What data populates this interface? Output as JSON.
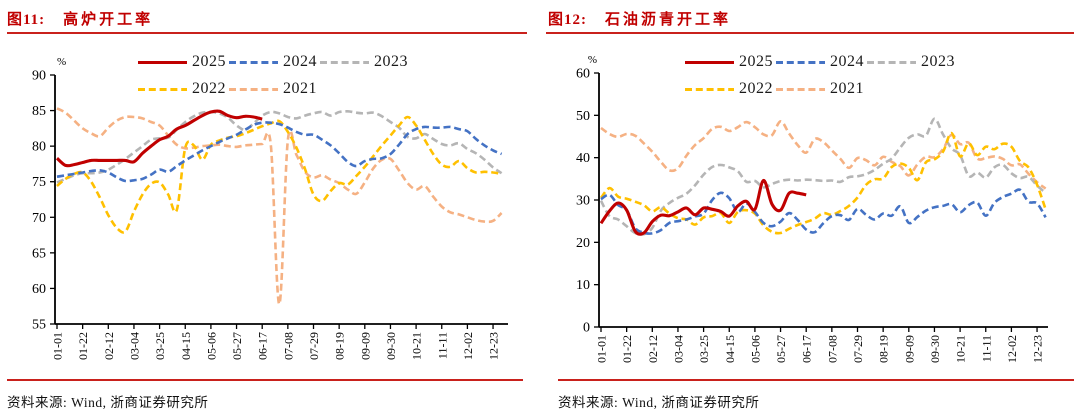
{
  "figures": [
    {
      "fig_label": "图11:",
      "title": "高炉开工率",
      "source": "资料来源: Wind, 浙商证券研究所"
    },
    {
      "fig_label": "图12:",
      "title": "石油沥青开工率",
      "source": "资料来源: Wind, 浙商证券研究所"
    }
  ],
  "accent_red": "#C00000",
  "rule_red": "#C9211C",
  "chart_data": [
    {
      "type": "line",
      "title": "高炉开工率",
      "ylabel": "%",
      "ylim": [
        55,
        90
      ],
      "y_ticks": [
        55,
        60,
        65,
        70,
        75,
        80,
        85,
        90
      ],
      "x_tick_labels": [
        "01-01",
        "01-22",
        "02-12",
        "03-04",
        "03-25",
        "04-15",
        "05-06",
        "05-27",
        "06-17",
        "07-08",
        "07-29",
        "08-19",
        "09-09",
        "09-30",
        "10-21",
        "11-11",
        "12-02",
        "12-23"
      ],
      "legend_rows": [
        [
          "2025",
          "2024",
          "2023"
        ],
        [
          "2022",
          "2021"
        ]
      ],
      "series": [
        {
          "name": "2021",
          "color": "#F5B183",
          "dash": true,
          "values": [
            85.3,
            84.7,
            83.6,
            82.5,
            81.8,
            81.4,
            82.6,
            83.6,
            84.1,
            84.1,
            83.9,
            83.4,
            82.9,
            81.5,
            80.2,
            79.7,
            79.8,
            80.0,
            80.1,
            80.2,
            80.0,
            79.9,
            80.1,
            80.2,
            80.3,
            80.2,
            57.8,
            80.9,
            78.8,
            76.4,
            75.6,
            75.9,
            75.3,
            74.8,
            73.9,
            73.3,
            74.9,
            76.9,
            78.1,
            78.2,
            76.6,
            74.8,
            73.9,
            74.4,
            72.9,
            71.5,
            70.7,
            70.4,
            70.0,
            69.6,
            69.4,
            69.5,
            70.6
          ]
        },
        {
          "name": "2023",
          "color": "#B5B5B5",
          "dash": true,
          "values": [
            74.9,
            75.4,
            75.9,
            76.2,
            76.2,
            76.3,
            76.7,
            77.4,
            78.2,
            79.1,
            80.0,
            80.9,
            81.1,
            81.2,
            82.3,
            83.4,
            84.2,
            84.7,
            84.8,
            84.6,
            84.0,
            82.9,
            82.3,
            83.2,
            84.3,
            84.8,
            84.6,
            84.1,
            83.9,
            84.3,
            84.6,
            84.8,
            84.3,
            84.8,
            84.9,
            84.7,
            84.6,
            84.7,
            84.2,
            83.4,
            82.6,
            81.3,
            81.1,
            81.7,
            81.0,
            80.3,
            80.1,
            80.4,
            79.6,
            79.0,
            78.1,
            77.0,
            76.2
          ]
        },
        {
          "name": "2022",
          "color": "#FFC000",
          "dash": true,
          "values": [
            74.4,
            75.4,
            76.1,
            76.3,
            75.0,
            72.8,
            70.3,
            68.5,
            68.0,
            70.8,
            73.2,
            74.7,
            74.9,
            73.2,
            71.0,
            79.8,
            80.1,
            78.1,
            80.2,
            80.8,
            81.2,
            81.4,
            81.8,
            82.3,
            82.8,
            83.2,
            83.5,
            82.0,
            79.8,
            76.8,
            73.2,
            72.3,
            73.7,
            74.8,
            74.6,
            75.8,
            77.1,
            78.6,
            80.1,
            81.5,
            82.9,
            84.1,
            82.9,
            80.9,
            78.9,
            77.4,
            77.1,
            77.9,
            76.9,
            76.3,
            76.4,
            76.3,
            76.1
          ]
        },
        {
          "name": "2024",
          "color": "#4472C4",
          "dash": true,
          "values": [
            75.7,
            75.9,
            76.1,
            76.3,
            76.5,
            76.6,
            76.3,
            75.6,
            75.1,
            75.2,
            75.4,
            76.0,
            76.7,
            76.4,
            77.2,
            78.0,
            78.7,
            79.4,
            80.0,
            80.6,
            81.1,
            81.6,
            82.3,
            83.0,
            83.3,
            83.3,
            83.1,
            82.6,
            82.0,
            81.6,
            81.6,
            80.9,
            80.1,
            79.0,
            77.8,
            77.2,
            77.9,
            78.2,
            78.3,
            78.9,
            80.2,
            81.7,
            82.4,
            82.7,
            82.6,
            82.6,
            82.7,
            82.4,
            82.1,
            81.0,
            80.1,
            79.4,
            78.9
          ]
        },
        {
          "name": "2025",
          "color": "#C00000",
          "dash": false,
          "values": [
            78.3,
            77.3,
            77.4,
            77.7,
            78.0,
            78.0,
            78.0,
            78.0,
            78.0,
            77.8,
            79.0,
            80.0,
            80.9,
            81.4,
            82.4,
            82.9,
            83.6,
            84.3,
            84.8,
            84.9,
            84.3,
            84.0,
            84.2,
            84.1,
            83.8
          ]
        }
      ]
    },
    {
      "type": "line",
      "title": "石油沥青开工率",
      "ylabel": "%",
      "ylim": [
        0,
        60
      ],
      "y_ticks": [
        0,
        10,
        20,
        30,
        40,
        50,
        60
      ],
      "x_tick_labels": [
        "01-01",
        "01-22",
        "02-12",
        "03-04",
        "03-25",
        "04-15",
        "05-06",
        "05-27",
        "06-17",
        "07-08",
        "07-29",
        "08-19",
        "09-09",
        "09-30",
        "10-21",
        "11-11",
        "12-02",
        "12-23"
      ],
      "legend_rows": [
        [
          "2025",
          "2024",
          "2023"
        ],
        [
          "2022",
          "2021"
        ]
      ],
      "series": [
        {
          "name": "2021",
          "color": "#F5B183",
          "dash": true,
          "values": [
            47.0,
            45.6,
            44.9,
            45.6,
            45.2,
            43.4,
            41.4,
            39.0,
            37.0,
            37.5,
            40.5,
            43.0,
            44.6,
            46.8,
            47.3,
            46.3,
            47.2,
            48.4,
            47.2,
            45.5,
            45.3,
            48.6,
            45.7,
            43.0,
            41.2,
            44.4,
            43.7,
            41.7,
            39.7,
            37.6,
            39.9,
            39.4,
            38.2,
            40.2,
            39.0,
            38.0,
            35.8,
            38.4,
            40.2,
            40.1,
            42.0,
            45.4,
            43.2,
            43.5,
            39.8,
            39.9,
            40.3,
            39.7,
            38.2,
            38.4,
            36.2,
            34.2,
            32.7
          ]
        },
        {
          "name": "2023",
          "color": "#B5B5B5",
          "dash": true,
          "values": [
            29.8,
            26.2,
            25.4,
            23.8,
            22.2,
            21.9,
            23.4,
            27.5,
            29.3,
            30.5,
            31.5,
            33.5,
            36.0,
            37.8,
            38.3,
            37.7,
            36.8,
            34.3,
            34.5,
            33.0,
            33.8,
            34.5,
            34.8,
            34.6,
            34.8,
            34.7,
            34.5,
            34.6,
            34.3,
            35.4,
            35.6,
            36.1,
            37.1,
            38.6,
            39.8,
            42.4,
            44.7,
            45.5,
            45.2,
            49.2,
            45.5,
            42.2,
            40.6,
            35.7,
            36.5,
            35.3,
            37.7,
            38.3,
            36.3,
            35.2,
            35.5,
            33.4,
            31.7
          ]
        },
        {
          "name": "2022",
          "color": "#FFC000",
          "dash": true,
          "values": [
            30.5,
            32.8,
            30.8,
            30.3,
            29.6,
            28.8,
            27.3,
            28.3,
            26.8,
            25.7,
            25.4,
            24.2,
            25.9,
            26.2,
            26.9,
            24.6,
            27.2,
            27.6,
            26.8,
            24.0,
            22.5,
            22.2,
            23.2,
            24.1,
            24.8,
            25.6,
            26.9,
            26.5,
            27.4,
            28.6,
            30.6,
            33.6,
            34.9,
            35.1,
            37.8,
            38.6,
            37.6,
            34.7,
            38.9,
            39.6,
            41.4,
            45.8,
            40.3,
            43.4,
            40.6,
            42.6,
            42.0,
            43.3,
            42.6,
            39.2,
            37.7,
            33.6,
            27.8
          ]
        },
        {
          "name": "2024",
          "color": "#4472C4",
          "dash": true,
          "values": [
            30.2,
            31.2,
            28.8,
            27.6,
            23.4,
            22.3,
            22.1,
            22.9,
            24.6,
            25.0,
            25.4,
            26.1,
            26.8,
            30.0,
            31.7,
            30.4,
            27.2,
            29.2,
            27.2,
            24.6,
            23.8,
            24.9,
            26.9,
            25.3,
            23.0,
            22.4,
            24.5,
            26.2,
            26.4,
            25.3,
            27.9,
            26.5,
            25.4,
            26.8,
            26.3,
            28.5,
            24.6,
            26.0,
            27.5,
            28.3,
            28.6,
            29.0,
            27.1,
            28.8,
            29.4,
            26.3,
            29.3,
            30.7,
            31.5,
            32.4,
            29.6,
            29.2,
            25.9
          ]
        },
        {
          "name": "2025",
          "color": "#C00000",
          "dash": false,
          "values": [
            24.5,
            27.4,
            29.3,
            27.6,
            22.6,
            22.2,
            24.9,
            26.4,
            26.3,
            27.2,
            28.1,
            26.5,
            28.1,
            27.8,
            27.3,
            26.2,
            28.6,
            29.7,
            27.8,
            34.6,
            29.0,
            27.6,
            31.6,
            31.6,
            31.2
          ]
        }
      ]
    }
  ]
}
